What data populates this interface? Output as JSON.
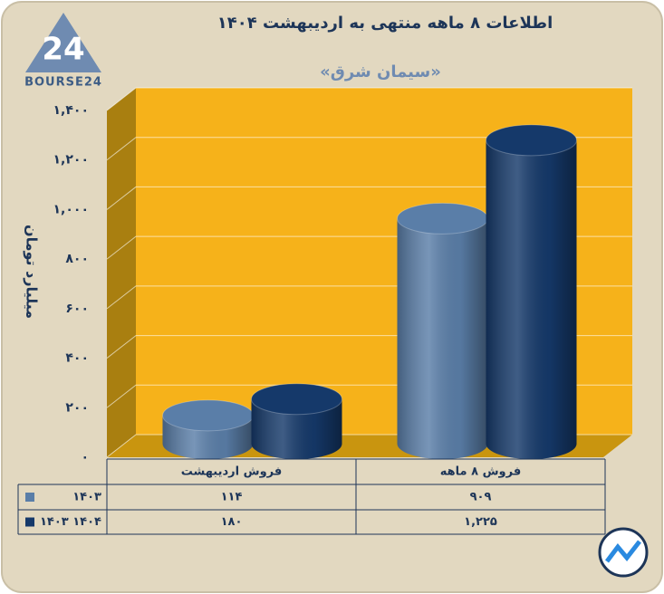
{
  "logo": {
    "mark": "24",
    "name": "BOURSE24"
  },
  "chart_data": {
    "type": "bar3d",
    "title": "اطلاعات ۸ ماهه منتهی به اردیبهشت ۱۴۰۴",
    "subtitle": "«سیمان شرق»",
    "y_label": "میلیارد تومان",
    "categories": [
      "فروش اردیبهشت",
      "فروش ۸ ماهه"
    ],
    "series": [
      {
        "name": "۱۴۰۳",
        "color": "#5a7ea8",
        "values": [
          114,
          909
        ],
        "value_labels": [
          "۱۱۴",
          "۹۰۹"
        ]
      },
      {
        "name": "۱۴۰۳ ۱۴۰۴",
        "color": "#15396a",
        "values": [
          180,
          1225
        ],
        "value_labels": [
          "۱۸۰",
          "۱,۲۲۵"
        ]
      }
    ],
    "ylim": [
      0,
      1400
    ],
    "yticks": [
      {
        "value": 0,
        "label": "۰"
      },
      {
        "value": 200,
        "label": "۲۰۰"
      },
      {
        "value": 400,
        "label": "۴۰۰"
      },
      {
        "value": 600,
        "label": "۶۰۰"
      },
      {
        "value": 800,
        "label": "۸۰۰"
      },
      {
        "value": 1000,
        "label": "۱,۰۰۰"
      },
      {
        "value": 1200,
        "label": "۱,۲۰۰"
      },
      {
        "value": 1400,
        "label": "۱,۴۰۰"
      }
    ],
    "grid": true,
    "wall_color": "#f6b21a"
  }
}
